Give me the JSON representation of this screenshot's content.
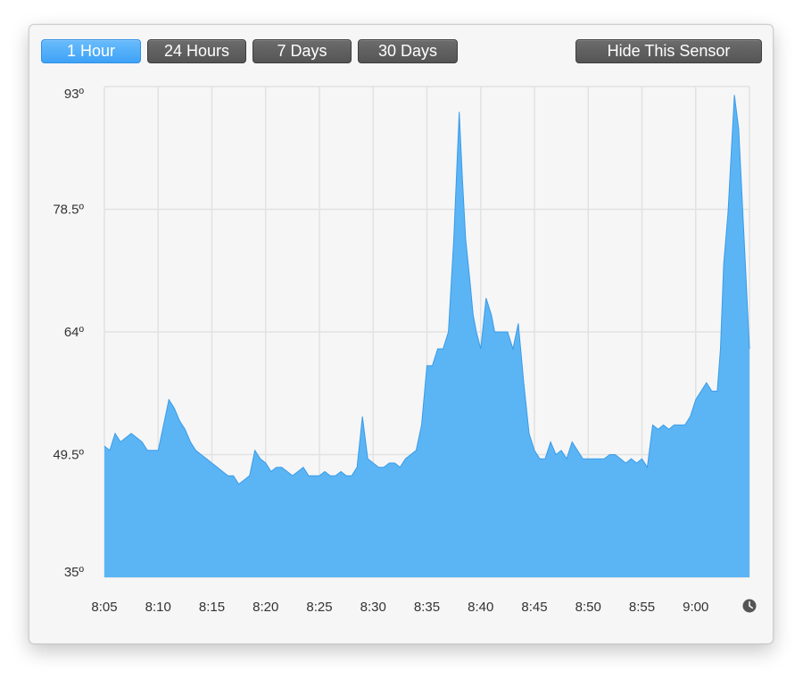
{
  "toolbar": {
    "range_buttons": [
      {
        "label": "1 Hour",
        "active": true
      },
      {
        "label": "24 Hours",
        "active": false
      },
      {
        "label": "7 Days",
        "active": false
      },
      {
        "label": "30 Days",
        "active": false
      }
    ],
    "hide_label": "Hide This Sensor"
  },
  "colors": {
    "area_fill": "#5bb5f5",
    "area_stroke": "#3a9be8",
    "grid": "#e2e2e2",
    "active_button": "#4aa8f8",
    "inactive_button": "#5f5f5f"
  },
  "icons": {
    "time_icon": "clock-icon"
  },
  "chart_data": {
    "type": "area",
    "title": "",
    "xlabel": "",
    "ylabel": "",
    "ylim": [
      35,
      93
    ],
    "yticks": [
      "35º",
      "49.5º",
      "64º",
      "78.5º",
      "93º"
    ],
    "ytick_values": [
      35,
      49.5,
      64,
      78.5,
      93
    ],
    "xticks": [
      "8:05",
      "8:10",
      "8:15",
      "8:20",
      "8:25",
      "8:30",
      "8:35",
      "8:40",
      "8:45",
      "8:50",
      "8:55",
      "9:00"
    ],
    "xlim_minutes_after_8": [
      5,
      65
    ],
    "grid": true,
    "series": [
      {
        "x_minutes_after_8": [
          5,
          5.5,
          6,
          6.5,
          7,
          7.5,
          8,
          8.5,
          9,
          9.5,
          10,
          10.5,
          11,
          11.5,
          12,
          12.5,
          13,
          13.5,
          14,
          14.5,
          15,
          15.5,
          16,
          16.5,
          17,
          17.5,
          18,
          18.5,
          19,
          19.5,
          20,
          20.5,
          21,
          21.5,
          22,
          22.5,
          23,
          23.5,
          24,
          24.5,
          25,
          25.5,
          26,
          26.5,
          27,
          27.5,
          28,
          28.5,
          29,
          29.5,
          30,
          30.5,
          31,
          31.5,
          32,
          32.5,
          33,
          33.5,
          34,
          34.5,
          35,
          35.5,
          36,
          36.5,
          37,
          37.5,
          38,
          38.3,
          38.6,
          39,
          39.3,
          39.6,
          40,
          40.5,
          41,
          41.3,
          41.6,
          42,
          42.5,
          43,
          43.5,
          44,
          44.5,
          45,
          45.5,
          46,
          46.5,
          47,
          47.5,
          48,
          48.5,
          49,
          49.5,
          50,
          50.5,
          51,
          51.5,
          52,
          52.5,
          53,
          53.5,
          54,
          54.5,
          55,
          55.5,
          56,
          56.5,
          57,
          57.5,
          58,
          58.5,
          59,
          59.5,
          60,
          60.5,
          61,
          61.5,
          62,
          62.3,
          62.6,
          63,
          63.3,
          63.6,
          64,
          64.5,
          65
        ],
        "y": [
          50.5,
          50,
          52,
          51,
          51.5,
          52,
          51.5,
          51,
          50,
          50,
          50,
          53,
          56,
          55,
          53.5,
          52.5,
          51,
          50,
          49.5,
          49,
          48.5,
          48,
          47.5,
          47,
          47,
          46,
          46.5,
          47,
          50,
          49,
          48.5,
          47.5,
          48,
          48,
          47.5,
          47,
          47.5,
          48,
          47,
          47,
          47,
          47.5,
          47,
          47,
          47.5,
          47,
          47,
          48,
          54,
          49,
          48.5,
          48,
          48,
          48.5,
          48.5,
          48,
          49,
          49.5,
          50,
          53,
          60,
          60,
          62,
          62,
          64,
          75,
          90,
          82,
          75,
          70,
          66,
          64,
          62,
          68,
          66,
          64,
          64,
          64,
          64,
          62,
          65,
          58,
          52,
          50,
          49,
          49,
          51,
          49.5,
          50,
          49,
          51,
          50,
          49,
          49,
          49,
          49,
          49,
          49.5,
          49.5,
          49,
          48.5,
          49,
          48.5,
          49,
          48,
          53,
          52.5,
          53,
          52.5,
          53,
          53,
          53,
          54,
          56,
          57,
          58,
          57,
          57,
          62,
          72,
          78,
          85,
          92,
          88,
          75,
          62,
          60,
          58.5
        ]
      }
    ]
  }
}
